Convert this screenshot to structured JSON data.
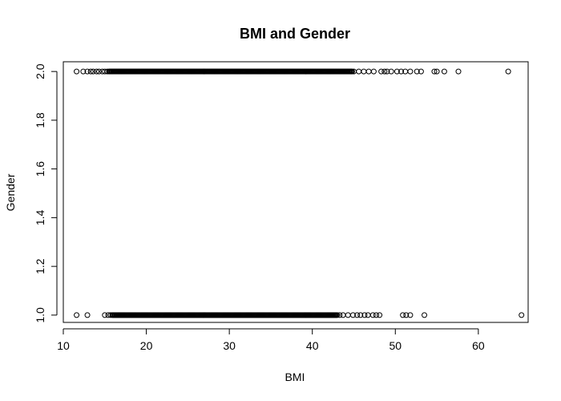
{
  "chart_data": {
    "type": "scatter",
    "title": "BMI and Gender",
    "xlabel": "BMI",
    "ylabel": "Gender",
    "xlim": [
      10,
      66
    ],
    "ylim": [
      0.97,
      2.04
    ],
    "xticks": [
      10,
      20,
      30,
      40,
      50,
      60
    ],
    "yticks": [
      1.0,
      1.2,
      1.4,
      1.6,
      1.8,
      2.0
    ],
    "xtick_labels": [
      "10",
      "20",
      "30",
      "40",
      "50",
      "60"
    ],
    "ytick_labels": [
      "1.0",
      "1.2",
      "1.4",
      "1.6",
      "1.8",
      "2.0"
    ],
    "marker": "open-circle",
    "grid": false,
    "series": [
      {
        "group": 2.0,
        "points": [
          11.6,
          12.4,
          12.9,
          13.3,
          13.6,
          14.0,
          14.3,
          14.7,
          15.0,
          15.3,
          45.0,
          45.6,
          46.2,
          46.8,
          47.4,
          48.3,
          48.7,
          49.0,
          49.5,
          50.2,
          50.7,
          51.2,
          51.8,
          52.6,
          53.1,
          54.7,
          55.0,
          55.9,
          57.6,
          63.6
        ],
        "dense_ranges": [
          [
            15.5,
            44.8
          ]
        ]
      },
      {
        "group": 1.0,
        "points": [
          11.6,
          12.9,
          15.0,
          15.4,
          15.7,
          43.3,
          43.7,
          44.3,
          44.9,
          45.4,
          45.8,
          46.3,
          46.7,
          47.3,
          47.7,
          48.1,
          50.9,
          51.3,
          51.8,
          53.5,
          65.2
        ],
        "dense_ranges": [
          [
            15.9,
            43.0
          ]
        ]
      }
    ]
  }
}
